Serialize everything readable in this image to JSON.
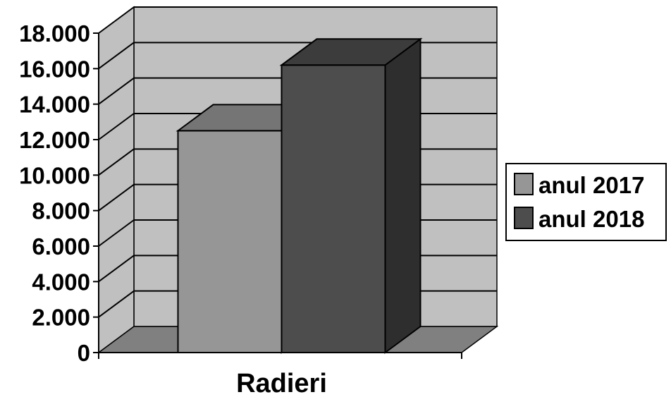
{
  "chart_data": {
    "type": "bar",
    "categories": [
      "Radieri"
    ],
    "series": [
      {
        "name": "anul 2017",
        "values": [
          12500
        ],
        "color": "#969696"
      },
      {
        "name": "anul 2018",
        "values": [
          16200
        ],
        "color": "#4d4d4d"
      }
    ],
    "ylim": [
      0,
      18000
    ],
    "yticks": [
      "0",
      "2.000",
      "4.000",
      "6.000",
      "8.000",
      "10.000",
      "12.000",
      "14.000",
      "16.000",
      "18.000"
    ],
    "style": "3d-column",
    "grid": true,
    "legend_position": "right",
    "colors": {
      "wall": "#c0c0c0",
      "floor": "#808080",
      "gridline": "#000000"
    }
  }
}
